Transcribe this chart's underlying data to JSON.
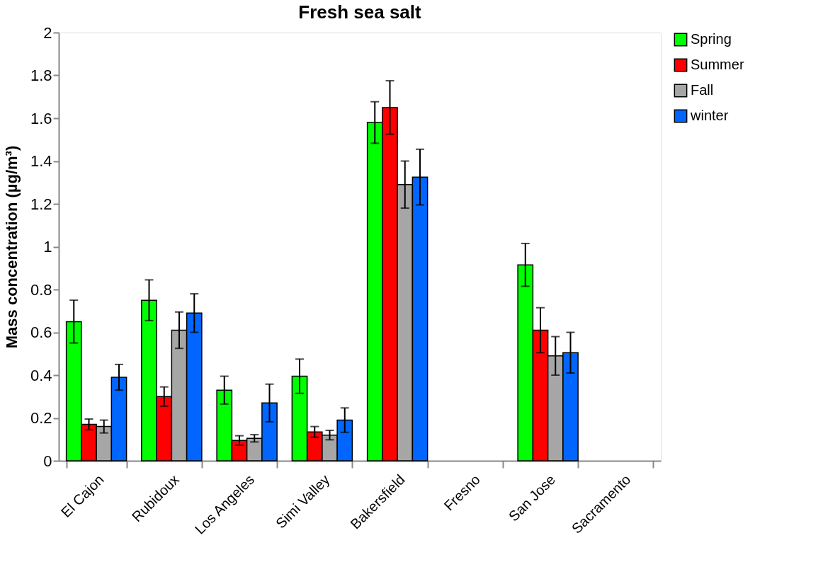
{
  "chart_data": {
    "type": "bar",
    "title": "Fresh sea salt",
    "ylabel": "Mass concentration (µg/m³)",
    "categories": [
      "El Cajon",
      "Rubidoux",
      "Los Angeles",
      "Simi Valley",
      "Bakersfield",
      "Fresno",
      "San Jose",
      "Sacramento"
    ],
    "series": [
      {
        "name": "Spring",
        "color": "#00ff00",
        "values": [
          0.65,
          0.75,
          0.33,
          0.395,
          1.58,
          null,
          0.915,
          null
        ],
        "errors": [
          0.1,
          0.095,
          0.065,
          0.08,
          0.097,
          null,
          0.1,
          null
        ]
      },
      {
        "name": "Summer",
        "color": "#ff0000",
        "values": [
          0.17,
          0.3,
          0.095,
          0.135,
          1.65,
          null,
          0.61,
          null
        ],
        "errors": [
          0.025,
          0.045,
          0.022,
          0.025,
          0.125,
          null,
          0.105,
          null
        ]
      },
      {
        "name": "Fall",
        "color": "#a6a6a6",
        "values": [
          0.16,
          0.61,
          0.105,
          0.12,
          1.29,
          null,
          0.49,
          null
        ],
        "errors": [
          0.03,
          0.085,
          0.017,
          0.022,
          0.11,
          null,
          0.09,
          null
        ]
      },
      {
        "name": "winter",
        "color": "#0066ff",
        "values": [
          0.39,
          0.69,
          0.27,
          0.19,
          1.325,
          null,
          0.505,
          null
        ],
        "errors": [
          0.06,
          0.09,
          0.088,
          0.057,
          0.13,
          null,
          0.095,
          null
        ]
      }
    ],
    "ylim": [
      0,
      2
    ],
    "yticks": [
      0,
      0.2,
      0.4,
      0.6,
      0.8,
      1,
      1.2,
      1.4,
      1.6,
      1.8,
      2
    ],
    "grid": false,
    "legend": "right"
  }
}
